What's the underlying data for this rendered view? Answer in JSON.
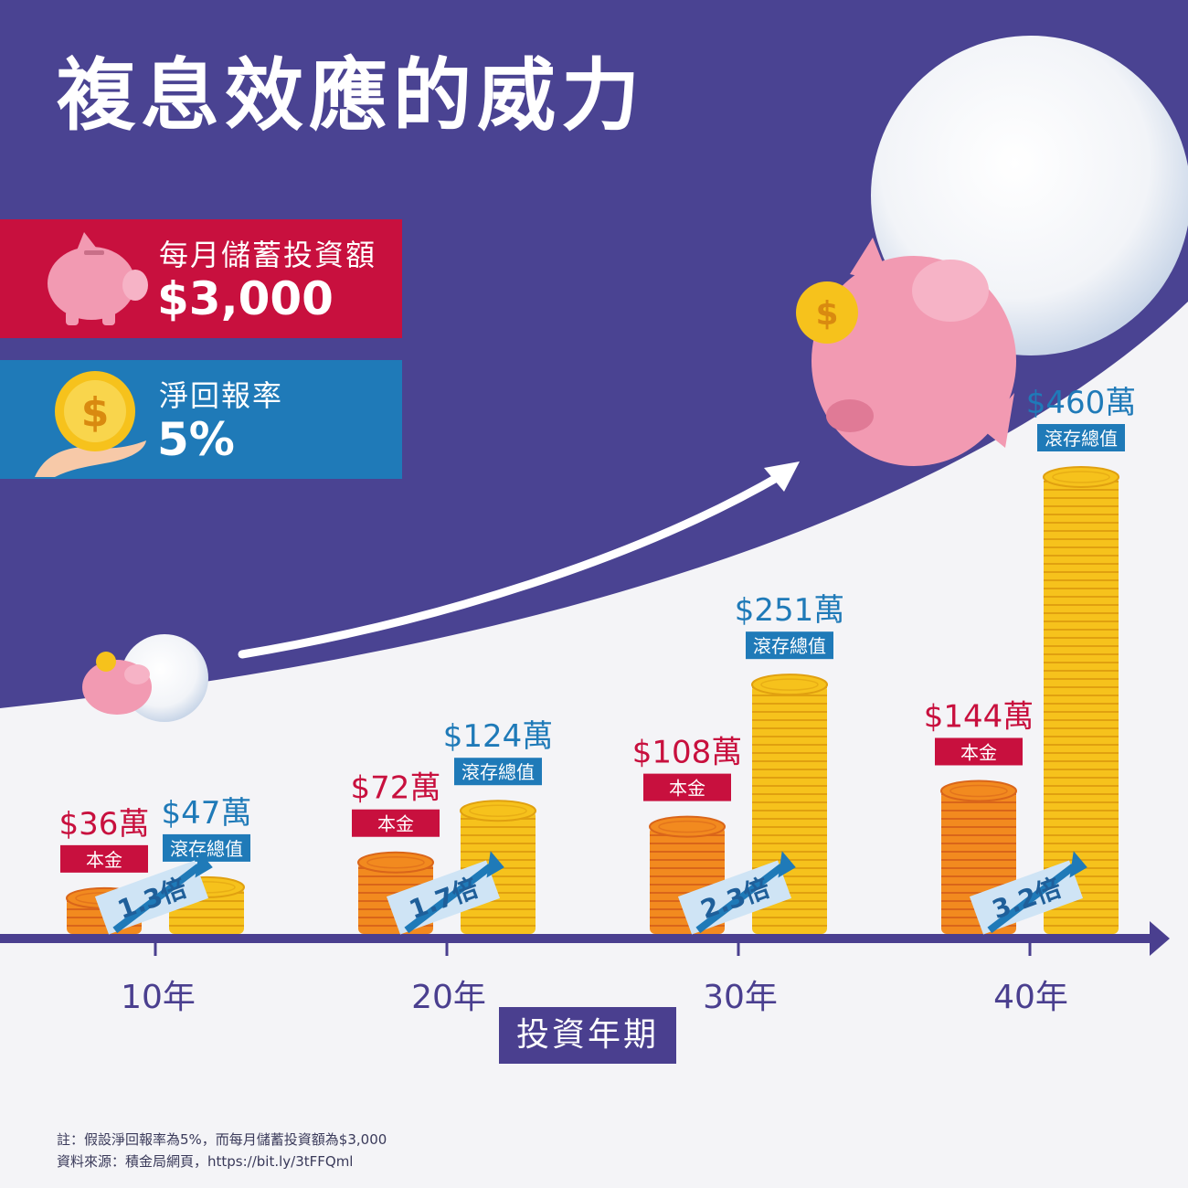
{
  "title": "複息效應的威力",
  "monthly_card": {
    "label": "每月儲蓄投資額",
    "value": "$3,000",
    "color": "#c8103e",
    "icon": "piggy-bank-icon"
  },
  "rate_card": {
    "label": "淨回報率",
    "value": "5%",
    "color": "#1f7ab8",
    "icon": "coin-in-hand-icon"
  },
  "axis_title": "投資年期",
  "footnotes": {
    "note": "註：假設淨回報率為5%，而每月儲蓄投資額為$3,000",
    "source": "資料來源：積金局網頁，https://bit.ly/3tFFQml"
  },
  "colors": {
    "background": "#4a4392",
    "principal": "#c8103e",
    "total": "#1f7ab8",
    "gold": "#f6c21c",
    "orange": "#f28a1f"
  },
  "chart_data": {
    "type": "bar",
    "xlabel": "投資年期",
    "categories": [
      "10年",
      "20年",
      "30年",
      "40年"
    ],
    "series": [
      {
        "name": "本金",
        "values": [
          36,
          72,
          108,
          144
        ],
        "value_labels": [
          "$36萬",
          "$72萬",
          "$108萬",
          "$144萬"
        ]
      },
      {
        "name": "滾存總值",
        "values": [
          47,
          124,
          251,
          460
        ],
        "value_labels": [
          "$47萬",
          "$124萬",
          "$251萬",
          "$460萬"
        ]
      }
    ],
    "multipliers": [
      "1.3倍",
      "1.7倍",
      "2.3倍",
      "3.2倍"
    ]
  }
}
